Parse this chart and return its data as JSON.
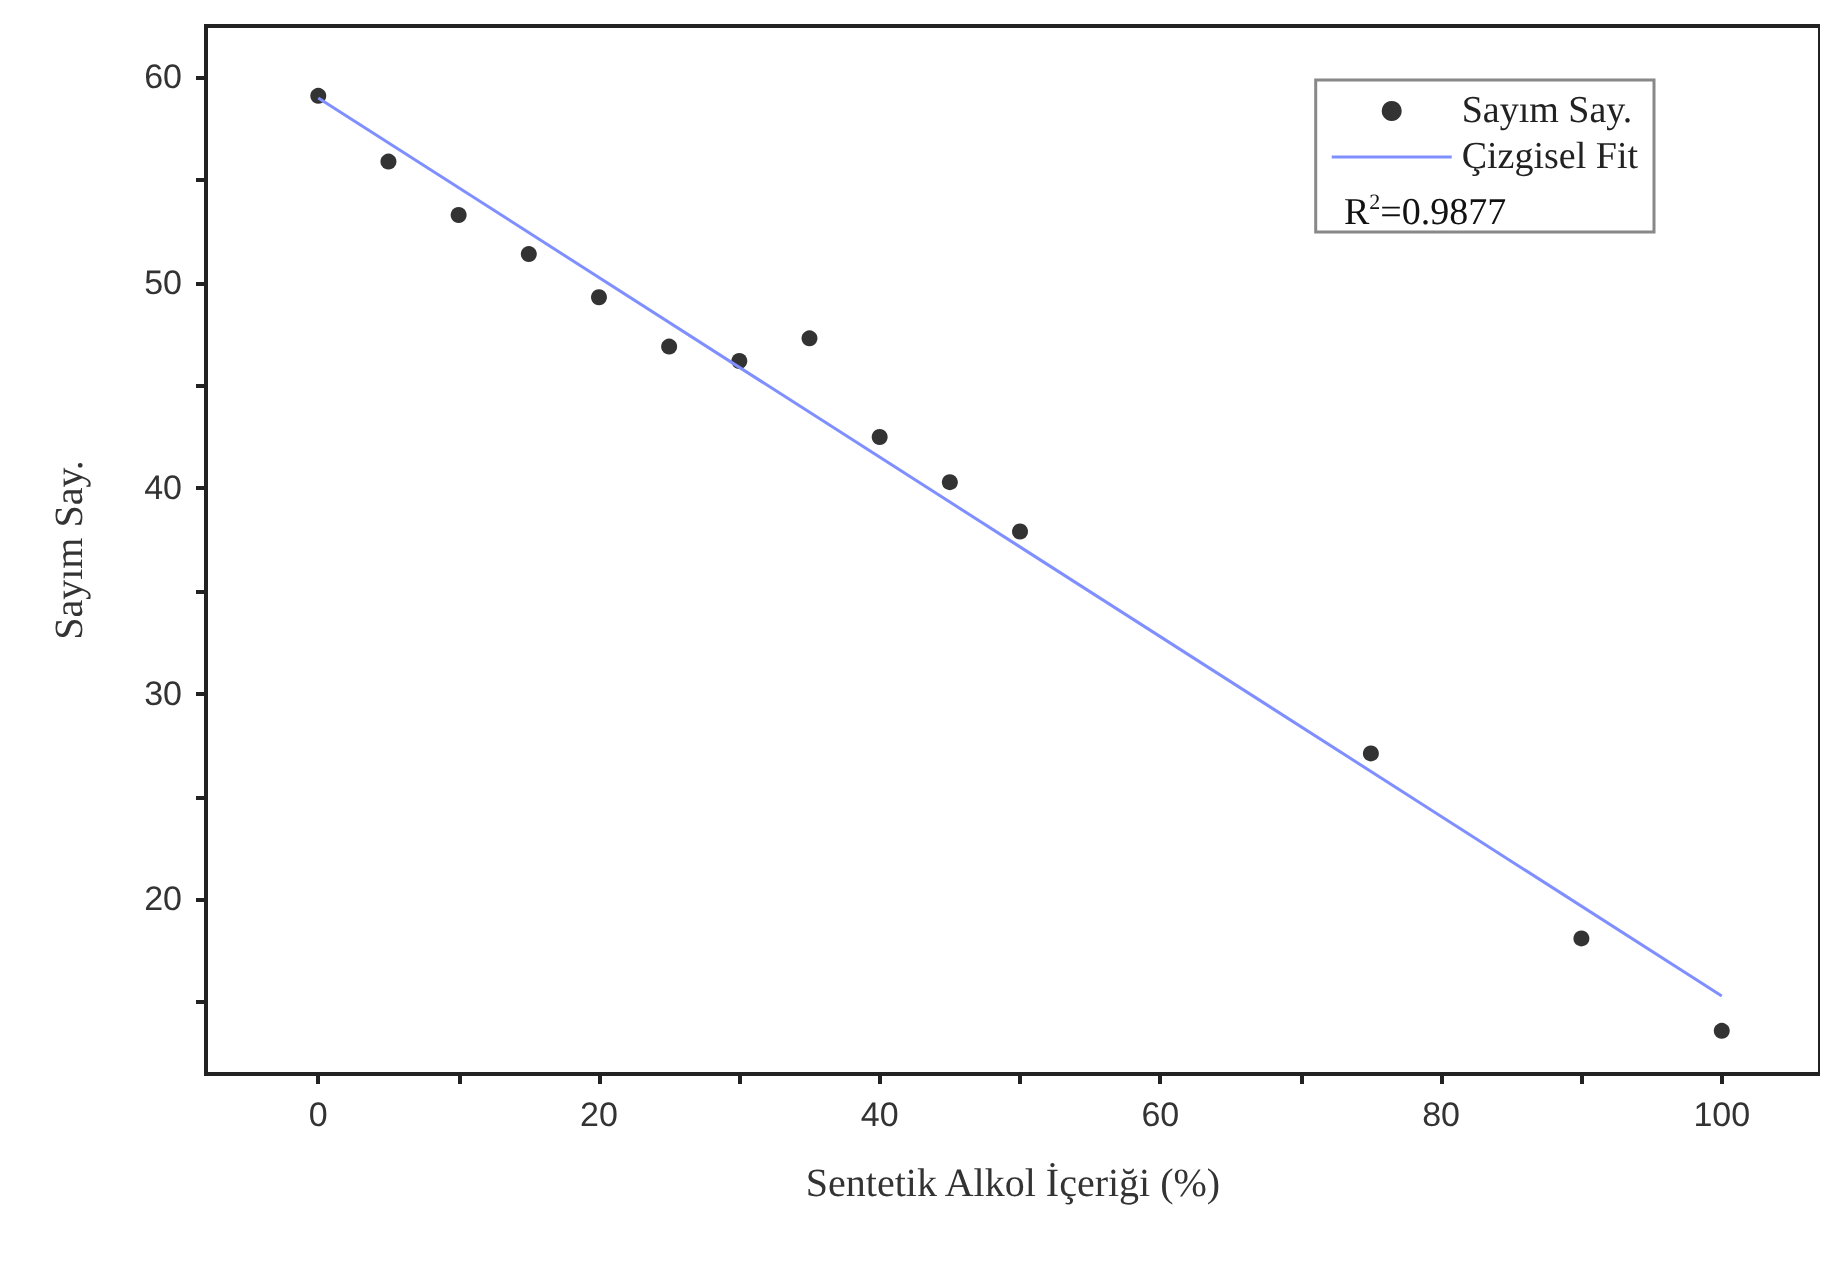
{
  "chart_data": {
    "type": "scatter",
    "xlabel": "Sentetik Alkol İçeriği (%)",
    "ylabel": "Sayım Say.",
    "x": [
      0,
      5,
      10,
      15,
      20,
      25,
      30,
      35,
      40,
      45,
      50,
      75,
      90,
      100
    ],
    "series": [
      {
        "name": "Sayım Say.",
        "color": "#000000",
        "values": [
          59.1,
          55.9,
          53.3,
          51.4,
          49.3,
          46.9,
          46.2,
          47.3,
          42.5,
          40.3,
          37.9,
          27.1,
          18.1,
          13.6
        ]
      },
      {
        "type": "line",
        "name": "Çizgisel Fit",
        "color": "#7f8fff",
        "x": [
          0,
          100
        ],
        "values": [
          59.0,
          15.3
        ],
        "line_style": "solid",
        "marker": "none"
      }
    ],
    "annotations": [
      "R$^{2}$=0.9877"
    ],
    "marker": "circle",
    "legend": "top right",
    "grid": false,
    "xlim": [
      -8,
      107
    ],
    "ylim": [
      11.5,
      62.5
    ],
    "xticks": [
      0,
      {
        "value": 10,
        "label": null
      },
      20,
      {
        "value": 30,
        "label": null
      },
      40,
      {
        "value": 50,
        "label": null
      },
      60,
      {
        "value": 70,
        "label": null
      },
      80,
      {
        "value": 90,
        "label": null
      },
      100
    ],
    "yticks": [
      {
        "value": 15,
        "label": null
      },
      20,
      {
        "value": 25,
        "label": null
      },
      30,
      {
        "value": 35,
        "label": null
      },
      40,
      {
        "value": 45,
        "label": null
      },
      50,
      {
        "value": 55,
        "label": null
      },
      60
    ]
  }
}
